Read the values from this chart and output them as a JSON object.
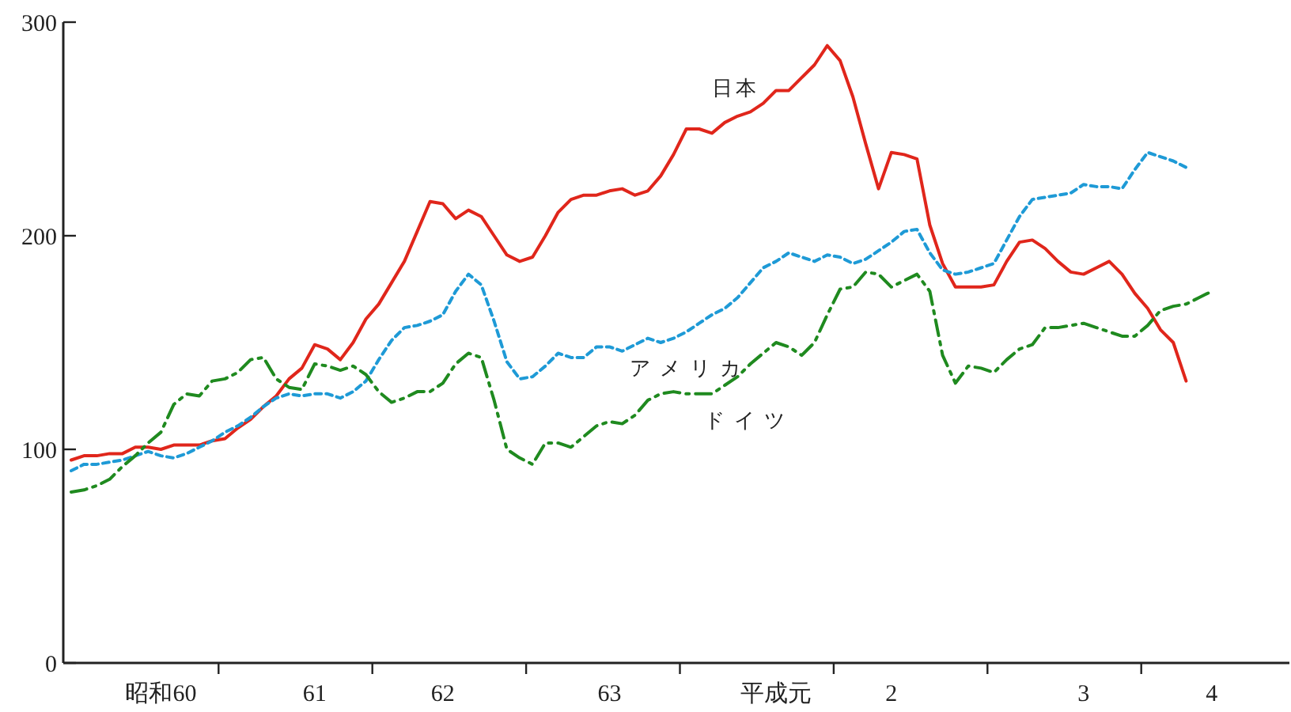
{
  "chart_data": {
    "type": "line",
    "ylim": [
      0,
      300
    ],
    "yticks": [
      0,
      100,
      200,
      300
    ],
    "grid": false,
    "marker": "none",
    "categories": [
      null,
      null,
      null,
      null,
      null,
      null,
      null,
      "昭和60",
      null,
      null,
      null,
      null,
      null,
      null,
      null,
      null,
      null,
      null,
      null,
      "61",
      null,
      null,
      null,
      null,
      null,
      null,
      null,
      null,
      null,
      "62",
      null,
      null,
      null,
      null,
      null,
      null,
      null,
      null,
      null,
      null,
      null,
      null,
      "63",
      null,
      null,
      null,
      null,
      null,
      null,
      null,
      null,
      null,
      null,
      null,
      null,
      "平成元",
      null,
      null,
      null,
      null,
      null,
      null,
      null,
      null,
      "2",
      null,
      null,
      null,
      null,
      null,
      null,
      null,
      null,
      null,
      null,
      null,
      null,
      null,
      null,
      "3",
      null,
      null,
      null,
      null,
      null,
      null,
      null,
      null,
      null,
      "4",
      null,
      null,
      null,
      null,
      null,
      null
    ],
    "series": [
      {
        "name": "日本",
        "color": "#e0261b",
        "line_style": "solid",
        "values": [
          95,
          97,
          97,
          98,
          98,
          101,
          101,
          100,
          102,
          102,
          102,
          104,
          105,
          110,
          114,
          120,
          125,
          133,
          138,
          149,
          147,
          142,
          150,
          161,
          168,
          178,
          188,
          202,
          216,
          215,
          208,
          212,
          209,
          200,
          191,
          188,
          190,
          200,
          211,
          217,
          219,
          219,
          221,
          222,
          219,
          221,
          228,
          238,
          250,
          250,
          248,
          253,
          256,
          258,
          262,
          268,
          268,
          274,
          280,
          289,
          282,
          265,
          243,
          222,
          239,
          238,
          236,
          205,
          187,
          176,
          176,
          176,
          177,
          188,
          197,
          198,
          194,
          188,
          183,
          182,
          185,
          188,
          182,
          173,
          166,
          156,
          150,
          132,
          null,
          null,
          null,
          null,
          null,
          null,
          null,
          null
        ]
      },
      {
        "name": "アメリカ",
        "color": "#1e9ad6",
        "line_style": "dashed",
        "values": [
          90,
          93,
          93,
          94,
          95,
          97,
          99,
          97,
          96,
          98,
          101,
          104,
          108,
          111,
          115,
          120,
          124,
          126,
          125,
          126,
          126,
          124,
          127,
          132,
          142,
          151,
          157,
          158,
          160,
          163,
          174,
          182,
          177,
          160,
          141,
          133,
          134,
          139,
          145,
          143,
          143,
          148,
          148,
          146,
          149,
          152,
          150,
          152,
          155,
          159,
          163,
          166,
          171,
          178,
          185,
          188,
          192,
          190,
          188,
          191,
          190,
          187,
          189,
          193,
          197,
          202,
          203,
          192,
          184,
          182,
          183,
          185,
          187,
          198,
          209,
          217,
          218,
          219,
          220,
          224,
          223,
          223,
          222,
          231,
          239,
          237,
          235,
          232,
          null,
          null,
          null,
          null,
          null,
          null,
          null,
          null
        ]
      },
      {
        "name": "ドイツ",
        "color": "#1f8a1f",
        "line_style": "dashdot",
        "values": [
          80,
          81,
          83,
          86,
          92,
          97,
          103,
          108,
          121,
          126,
          125,
          132,
          133,
          136,
          142,
          143,
          133,
          129,
          128,
          140,
          139,
          137,
          139,
          135,
          127,
          122,
          124,
          127,
          127,
          131,
          140,
          145,
          143,
          123,
          100,
          96,
          93,
          103,
          103,
          101,
          106,
          111,
          113,
          112,
          116,
          123,
          126,
          127,
          126,
          126,
          126,
          130,
          134,
          140,
          145,
          150,
          148,
          144,
          150,
          163,
          175,
          176,
          183,
          182,
          176,
          179,
          182,
          174,
          144,
          131,
          139,
          138,
          136,
          142,
          147,
          149,
          157,
          157,
          158,
          159,
          157,
          155,
          153,
          153,
          158,
          165,
          167,
          168,
          171,
          174,
          null,
          null,
          null,
          null,
          null,
          null
        ]
      }
    ]
  }
}
